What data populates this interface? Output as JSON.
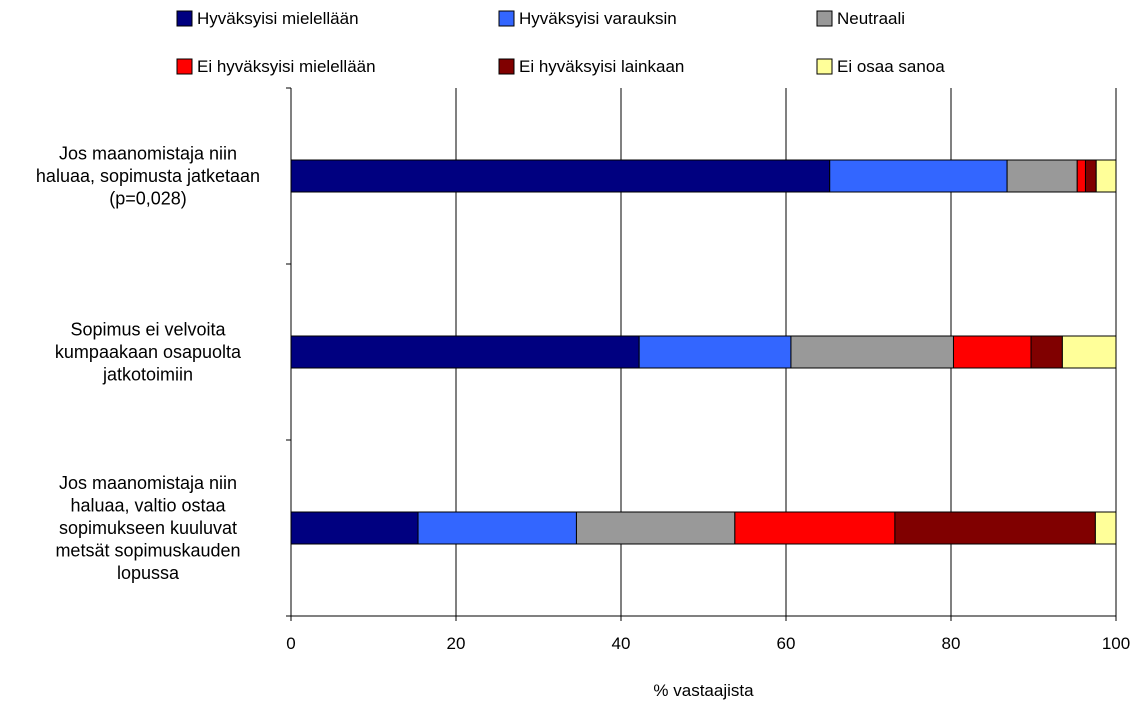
{
  "chart_data": {
    "type": "bar",
    "orientation": "horizontal",
    "stacked": true,
    "categories": [
      [
        "Jos maanomistaja niin",
        "haluaa, sopimusta jatketaan",
        "(p=0,028)"
      ],
      [
        "Sopimus ei velvoita",
        "kumpaakaan osapuolta",
        "jatkotoimiin"
      ],
      [
        "Jos maanomistaja niin",
        "haluaa, valtio ostaa",
        "sopimukseen kuuluvat",
        "metsät sopimuskauden",
        "lopussa"
      ]
    ],
    "series": [
      {
        "name": "Hyväksyisi mielellään",
        "color": "#000080",
        "values": [
          65.3,
          42.2,
          15.4
        ]
      },
      {
        "name": "Hyväksyisi varauksin",
        "color": "#3366ff",
        "values": [
          21.5,
          18.4,
          19.2
        ]
      },
      {
        "name": "Neutraali",
        "color": "#999999",
        "values": [
          8.5,
          19.7,
          19.2
        ]
      },
      {
        "name": "Ei hyväksyisi mielellään",
        "color": "#ff0000",
        "values": [
          1.0,
          9.4,
          19.4
        ]
      },
      {
        "name": "Ei hyväksyisi lainkaan",
        "color": "#800000",
        "values": [
          1.3,
          3.8,
          24.3
        ]
      },
      {
        "name": "Ei osaa sanoa",
        "color": "#ffff99",
        "values": [
          2.4,
          6.5,
          2.5
        ]
      }
    ],
    "xlim": [
      0,
      100
    ],
    "xticks": [
      "0",
      "20",
      "40",
      "60",
      "80",
      "100"
    ],
    "xlabel": "% vastaajista",
    "grid": true,
    "legend_position": "top"
  }
}
